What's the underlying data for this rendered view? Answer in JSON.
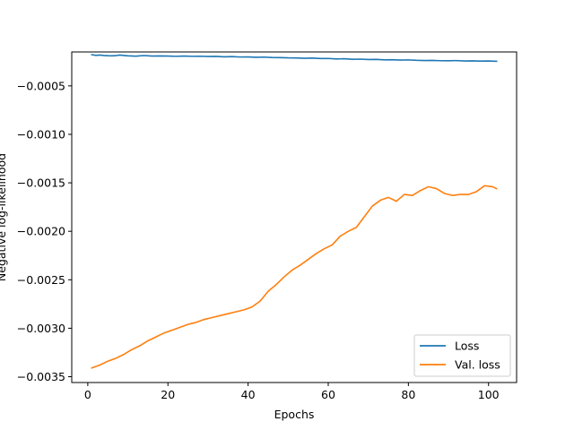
{
  "chart_data": {
    "type": "line",
    "title": "",
    "xlabel": "Epochs",
    "ylabel": "Negative log-likelihood",
    "xlim": [
      -4,
      107
    ],
    "ylim": [
      -0.00356,
      -0.00015
    ],
    "xticks": [
      0,
      20,
      40,
      60,
      80,
      100
    ],
    "xtick_labels": [
      "0",
      "20",
      "40",
      "60",
      "80",
      "100"
    ],
    "yticks": [
      -0.0005,
      -0.001,
      -0.0015,
      -0.002,
      -0.0025,
      -0.003,
      -0.0035
    ],
    "ytick_labels": [
      "−0.0005",
      "−0.0010",
      "−0.0015",
      "−0.0020",
      "−0.0025",
      "−0.0030",
      "−0.0035"
    ],
    "grid": false,
    "legend_position": "lower right",
    "series": [
      {
        "name": "Loss",
        "color": "#1f77b4",
        "x": [
          1,
          2,
          3,
          4,
          5,
          6,
          7,
          8,
          9,
          10,
          12,
          14,
          16,
          18,
          20,
          22,
          24,
          26,
          28,
          30,
          32,
          34,
          36,
          38,
          40,
          42,
          44,
          46,
          48,
          50,
          52,
          54,
          56,
          58,
          60,
          62,
          64,
          66,
          68,
          70,
          72,
          74,
          76,
          78,
          80,
          82,
          84,
          86,
          88,
          90,
          92,
          94,
          96,
          98,
          100,
          102
        ],
        "y": [
          -0.000178,
          -0.000185,
          -0.000182,
          -0.000186,
          -0.000189,
          -0.00019,
          -0.000188,
          -0.000182,
          -0.000186,
          -0.00019,
          -0.000193,
          -0.000187,
          -0.000192,
          -0.000191,
          -0.000192,
          -0.000195,
          -0.000192,
          -0.000195,
          -0.000194,
          -0.000197,
          -0.000196,
          -0.0002,
          -0.000198,
          -0.000202,
          -0.000201,
          -0.000205,
          -0.000203,
          -0.000207,
          -0.000208,
          -0.000211,
          -0.000212,
          -0.000215,
          -0.000213,
          -0.000218,
          -0.000217,
          -0.000222,
          -0.00022,
          -0.000226,
          -0.000224,
          -0.000228,
          -0.000227,
          -0.000231,
          -0.00023,
          -0.000234,
          -0.000232,
          -0.000236,
          -0.000238,
          -0.000237,
          -0.00024,
          -0.000241,
          -0.000239,
          -0.000243,
          -0.000242,
          -0.000244,
          -0.000243,
          -0.000246
        ]
      },
      {
        "name": "Val. loss",
        "color": "#ff7f0e",
        "x": [
          1,
          3,
          5,
          7,
          9,
          11,
          13,
          15,
          17,
          19,
          21,
          23,
          25,
          27,
          29,
          31,
          33,
          35,
          37,
          39,
          41,
          43,
          45,
          47,
          49,
          51,
          53,
          55,
          57,
          59,
          61,
          63,
          65,
          67,
          69,
          71,
          73,
          75,
          77,
          79,
          81,
          83,
          85,
          87,
          89,
          91,
          93,
          95,
          97,
          99,
          101,
          102
        ],
        "y": [
          -0.00341,
          -0.00338,
          -0.00334,
          -0.00331,
          -0.00327,
          -0.00322,
          -0.00318,
          -0.00313,
          -0.00309,
          -0.00305,
          -0.00302,
          -0.00299,
          -0.00296,
          -0.00294,
          -0.00291,
          -0.00289,
          -0.00287,
          -0.00285,
          -0.00283,
          -0.00281,
          -0.00278,
          -0.00272,
          -0.00262,
          -0.00255,
          -0.00247,
          -0.0024,
          -0.00235,
          -0.00229,
          -0.00223,
          -0.00218,
          -0.00214,
          -0.00205,
          -0.002,
          -0.00196,
          -0.00185,
          -0.00174,
          -0.00168,
          -0.00165,
          -0.00169,
          -0.00162,
          -0.00163,
          -0.00158,
          -0.00154,
          -0.00156,
          -0.00161,
          -0.00163,
          -0.00162,
          -0.00162,
          -0.00159,
          -0.00153,
          -0.00154,
          -0.00156
        ]
      }
    ]
  }
}
